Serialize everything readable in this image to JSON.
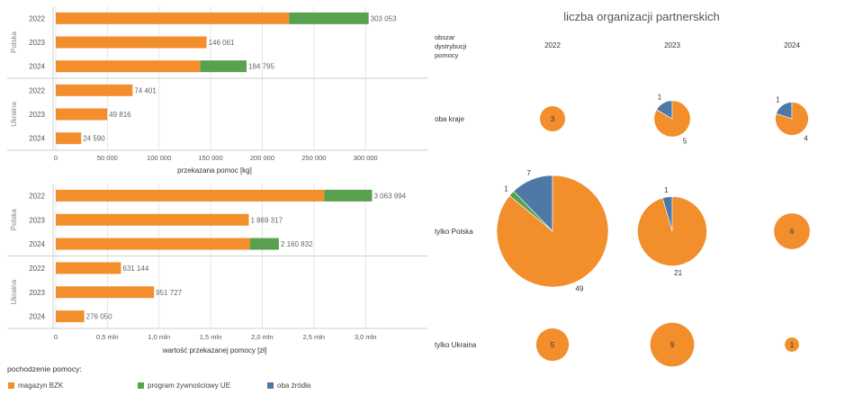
{
  "colors": {
    "magazyn": "#f28e2b",
    "program": "#59a14f",
    "oba": "#4e79a7",
    "grid": "#e6e6e6",
    "axis": "#cfcfcf",
    "text": "#555555"
  },
  "chart_data": [
    {
      "type": "bar",
      "orientation": "horizontal",
      "stacked": true,
      "groups": [
        "Polska",
        "Ukraina"
      ],
      "categories": [
        "2022",
        "2023",
        "2024"
      ],
      "xlabel": "przekazana pomoc [kg]",
      "xlim": [
        0,
        360000
      ],
      "ticks": [
        0,
        50000,
        100000,
        150000,
        200000,
        250000,
        300000
      ],
      "tick_labels": [
        "0",
        "50 000",
        "100 000",
        "150 000",
        "200 000",
        "250 000",
        "300 000"
      ],
      "rows": [
        {
          "group": "Polska",
          "year": "2022",
          "magazyn": 226000,
          "program": 77053,
          "total_label": "303 053"
        },
        {
          "group": "Polska",
          "year": "2023",
          "magazyn": 146061,
          "program": 0,
          "total_label": "146 061"
        },
        {
          "group": "Polska",
          "year": "2024",
          "magazyn": 140000,
          "program": 44795,
          "total_label": "184 795"
        },
        {
          "group": "Ukraina",
          "year": "2022",
          "magazyn": 74401,
          "program": 0,
          "total_label": "74 401"
        },
        {
          "group": "Ukraina",
          "year": "2023",
          "magazyn": 49816,
          "program": 0,
          "total_label": "49 816"
        },
        {
          "group": "Ukraina",
          "year": "2024",
          "magazyn": 24590,
          "program": 0,
          "total_label": "24 590"
        }
      ]
    },
    {
      "type": "bar",
      "orientation": "horizontal",
      "stacked": true,
      "groups": [
        "Polska",
        "Ukraina"
      ],
      "categories": [
        "2022",
        "2023",
        "2024"
      ],
      "xlabel": "wartość przekazanej pomocy [zł]",
      "xlim": [
        0,
        3600000
      ],
      "ticks": [
        0,
        500000,
        1000000,
        1500000,
        2000000,
        2500000,
        3000000
      ],
      "tick_labels": [
        "0",
        "0,5 mln",
        "1,0 mln",
        "1,5 mln",
        "2,0 mln",
        "2,5 mln",
        "3,0 mln"
      ],
      "rows": [
        {
          "group": "Polska",
          "year": "2022",
          "magazyn": 2600000,
          "program": 463994,
          "total_label": "3 063 994"
        },
        {
          "group": "Polska",
          "year": "2023",
          "magazyn": 1869317,
          "program": 0,
          "total_label": "1 869 317"
        },
        {
          "group": "Polska",
          "year": "2024",
          "magazyn": 1880000,
          "program": 280832,
          "total_label": "2 160 832"
        },
        {
          "group": "Ukraina",
          "year": "2022",
          "magazyn": 631144,
          "program": 0,
          "total_label": "631 144"
        },
        {
          "group": "Ukraina",
          "year": "2023",
          "magazyn": 951727,
          "program": 0,
          "total_label": "951 727"
        },
        {
          "group": "Ukraina",
          "year": "2024",
          "magazyn": 276050,
          "program": 0,
          "total_label": "276 050"
        }
      ]
    },
    {
      "type": "pie",
      "title": "liczba organizacji partnerskich",
      "row_header": "obszar dystrybucji pomocy",
      "row_header_lines": [
        "obszar",
        "dystrybucji",
        "pomocy"
      ],
      "years": [
        "2022",
        "2023",
        "2024"
      ],
      "areas": [
        "oba kraje",
        "tylko Polska",
        "tylko Ukraina"
      ],
      "cells": [
        {
          "area": "oba kraje",
          "year": "2022",
          "slices": [
            {
              "source": "magazyn",
              "value": 3
            }
          ]
        },
        {
          "area": "oba kraje",
          "year": "2023",
          "slices": [
            {
              "source": "magazyn",
              "value": 5
            },
            {
              "source": "oba",
              "value": 1
            }
          ]
        },
        {
          "area": "oba kraje",
          "year": "2024",
          "slices": [
            {
              "source": "magazyn",
              "value": 4
            },
            {
              "source": "oba",
              "value": 1
            }
          ]
        },
        {
          "area": "tylko Polska",
          "year": "2022",
          "slices": [
            {
              "source": "magazyn",
              "value": 49
            },
            {
              "source": "program",
              "value": 1
            },
            {
              "source": "oba",
              "value": 7
            }
          ]
        },
        {
          "area": "tylko Polska",
          "year": "2023",
          "slices": [
            {
              "source": "magazyn",
              "value": 21
            },
            {
              "source": "oba",
              "value": 1
            }
          ]
        },
        {
          "area": "tylko Polska",
          "year": "2024",
          "slices": [
            {
              "source": "magazyn",
              "value": 6
            }
          ]
        },
        {
          "area": "tylko Ukraina",
          "year": "2022",
          "slices": [
            {
              "source": "magazyn",
              "value": 5
            }
          ]
        },
        {
          "area": "tylko Ukraina",
          "year": "2023",
          "slices": [
            {
              "source": "magazyn",
              "value": 9
            }
          ]
        },
        {
          "area": "tylko Ukraina",
          "year": "2024",
          "slices": [
            {
              "source": "magazyn",
              "value": 1
            }
          ]
        }
      ]
    }
  ],
  "legend": {
    "title": "pochodzenie pomocy:",
    "items": [
      {
        "key": "magazyn",
        "label": "magazyn BZK"
      },
      {
        "key": "program",
        "label": "program żywnościowy UE"
      },
      {
        "key": "oba",
        "label": "oba źródła"
      }
    ]
  }
}
